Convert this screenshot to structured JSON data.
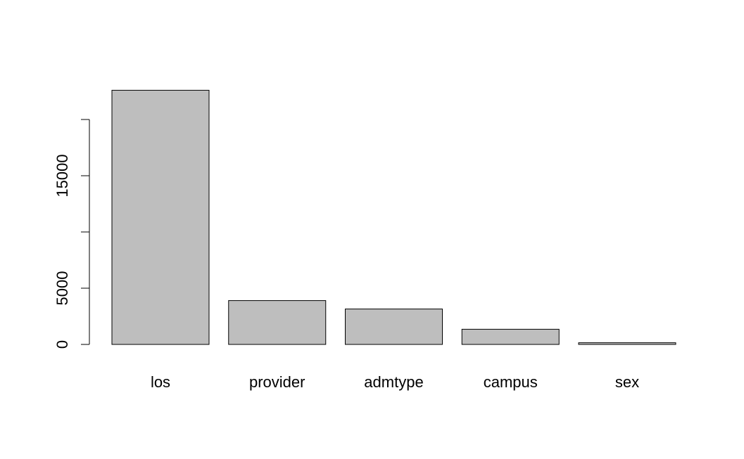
{
  "chart_data": {
    "type": "bar",
    "categories": [
      "los",
      "provider",
      "admtype",
      "campus",
      "sex"
    ],
    "values": [
      22600,
      3900,
      3150,
      1350,
      150
    ],
    "yticks": [
      0,
      5000,
      10000,
      15000,
      20000
    ],
    "ytick_labels": [
      "0",
      "5000",
      "",
      "15000",
      ""
    ],
    "title": "",
    "xlabel": "",
    "ylabel": "",
    "grid": false,
    "colors": {
      "bar_fill": "#bebebe",
      "bar_stroke": "#000000",
      "axis": "#000000"
    }
  }
}
